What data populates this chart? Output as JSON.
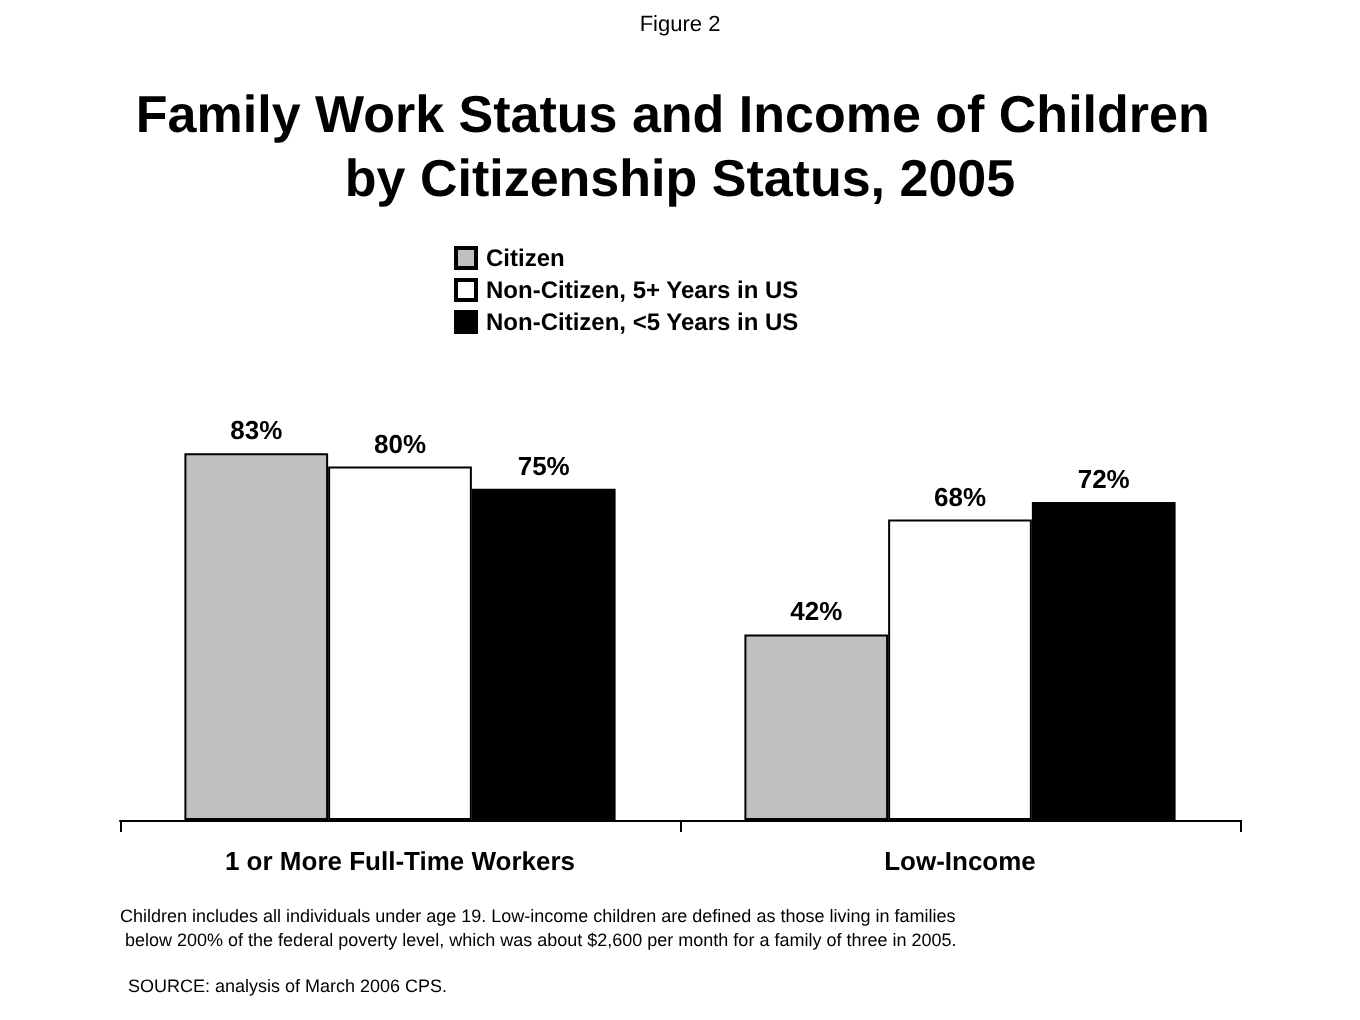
{
  "chart_data": {
    "type": "bar",
    "title": "Family Work Status and Income of Children by Citizenship Status, 2005",
    "subtitle": "Figure 2",
    "categories": [
      "1 or More Full-Time Workers",
      "Low-Income"
    ],
    "series": [
      {
        "name": "Citizen",
        "color": "#c0c0c0",
        "values": [
          83,
          42
        ],
        "value_labels": [
          "83%",
          "42%"
        ]
      },
      {
        "name": "Non-Citizen, 5+ Years in US",
        "color": "#ffffff",
        "values": [
          80,
          68
        ],
        "value_labels": [
          "80%",
          "68%"
        ]
      },
      {
        "name": "Non-Citizen, <5 Years in US",
        "color": "#000000",
        "values": [
          75,
          72
        ],
        "value_labels": [
          "75%",
          "72%"
        ]
      }
    ],
    "legend": "top",
    "annotations": [
      "Children includes all individuals under age 19. Low-income children are defined as those living in families below 200% of the federal poverty level, which was about $2,600 per month for a family of three in 2005.",
      "SOURCE: analysis of March 2006 CPS."
    ]
  }
}
